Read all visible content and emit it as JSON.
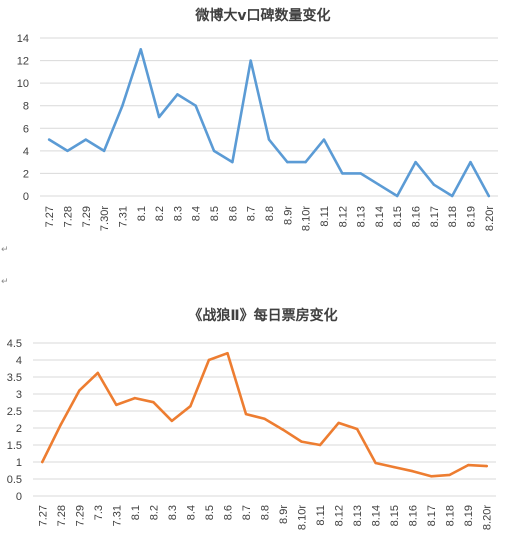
{
  "chart_data": [
    {
      "type": "line",
      "title": "微博大v口碑数量变化",
      "categories": [
        "7.27",
        "7.28",
        "7.29",
        "7.30r",
        "7.31",
        "8.1",
        "8.2",
        "8.3",
        "8.4",
        "8.5",
        "8.6",
        "8.7",
        "8.8",
        "8.9r",
        "8.10r",
        "8.11",
        "8.12",
        "8.13",
        "8.14",
        "8.15",
        "8.16",
        "8.17",
        "8.18",
        "8.19",
        "8.20r"
      ],
      "series": [
        {
          "values": [
            5,
            4,
            5,
            4,
            8,
            13,
            7,
            9,
            8,
            4,
            3,
            12,
            5,
            3,
            3,
            5,
            2,
            2,
            1,
            0,
            3,
            1,
            0,
            3,
            0
          ]
        }
      ],
      "ylim": [
        0,
        14
      ],
      "yticks": [
        0,
        2,
        4,
        6,
        8,
        10,
        12,
        14
      ],
      "grid": true,
      "color": "#5b9bd5"
    },
    {
      "type": "line",
      "title": "《战狼Ⅱ》每日票房变化",
      "categories": [
        "7.27",
        "7.28",
        "7.29",
        "7.3",
        "7.31",
        "8.1",
        "8.2",
        "8.3",
        "8.4",
        "8.5",
        "8.6",
        "8.7",
        "8.8",
        "8.9r",
        "8.10r",
        "8.11",
        "8.12",
        "8.13",
        "8.14",
        "8.15",
        "8.16",
        "8.17",
        "8.18",
        "8.19",
        "8.20r"
      ],
      "series": [
        {
          "values": [
            1.0,
            2.1,
            3.1,
            3.62,
            2.68,
            2.88,
            2.76,
            2.21,
            2.64,
            4.0,
            4.2,
            2.41,
            2.27,
            1.95,
            1.6,
            1.5,
            2.15,
            1.97,
            0.97,
            0.85,
            0.73,
            0.58,
            0.62,
            0.91,
            0.88
          ]
        }
      ],
      "ylim": [
        0,
        4.5
      ],
      "yticks": [
        "0",
        "0.5",
        "1",
        "1.5",
        "2",
        "2.5",
        "3",
        "3.5",
        "4",
        "4.5"
      ],
      "grid": true,
      "color": "#ed7d31"
    }
  ],
  "marks": [
    "↵",
    "↵"
  ]
}
